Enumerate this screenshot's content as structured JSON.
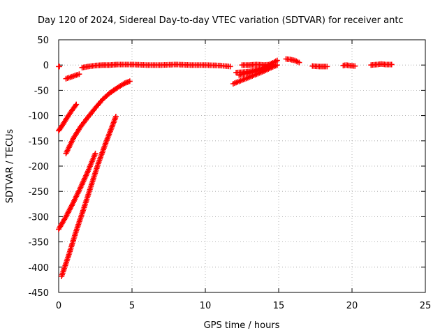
{
  "chart_data": {
    "type": "scatter",
    "title": "Day 120 of 2024, Sidereal Day-to-day VTEC variation (SDTVAR) for receiver antc",
    "xlabel": "GPS time / hours",
    "ylabel": "SDTVAR / TECUs",
    "xlim": [
      0,
      25
    ],
    "ylim": [
      -450,
      50
    ],
    "xticks": [
      0,
      5,
      10,
      15,
      20,
      25
    ],
    "yticks": [
      50,
      0,
      -50,
      -100,
      -150,
      -200,
      -250,
      -300,
      -350,
      -400,
      -450
    ],
    "grid": true,
    "marker": "+",
    "marker_color": "#ff0000",
    "series": [
      {
        "x": [
          0.0,
          0.05
        ],
        "y": [
          -3,
          -3
        ]
      },
      {
        "x": [
          0.0,
          0.3,
          0.6,
          0.9,
          1.2
        ],
        "y": [
          -130,
          -117,
          -103,
          -90,
          -78
        ]
      },
      {
        "x": [
          0.5,
          1.0,
          1.5,
          2.0,
          2.5,
          3.0,
          3.5,
          4.0,
          4.5,
          4.85
        ],
        "y": [
          -175,
          -145,
          -122,
          -103,
          -85,
          -68,
          -55,
          -45,
          -36,
          -32
        ]
      },
      {
        "x": [
          0.0,
          0.5,
          1.0,
          1.5,
          2.0,
          2.5
        ],
        "y": [
          -325,
          -300,
          -272,
          -242,
          -210,
          -175
        ]
      },
      {
        "x": [
          0.2,
          0.7,
          1.2,
          1.7,
          2.2,
          2.7,
          3.2,
          3.6,
          3.9
        ],
        "y": [
          -418,
          -375,
          -328,
          -285,
          -240,
          -195,
          -155,
          -125,
          -102
        ]
      },
      {
        "x": [
          0.5,
          1.0,
          1.4
        ],
        "y": [
          -27,
          -22,
          -18
        ]
      },
      {
        "x": [
          1.6,
          2.0,
          2.5,
          3.0,
          3.5,
          4.0,
          5.0,
          6.0,
          7.0,
          8.0,
          9.0,
          10.0,
          11.0,
          11.7
        ],
        "y": [
          -5,
          -3,
          -1,
          0,
          0,
          1,
          1,
          0,
          0,
          1,
          0,
          0,
          -1,
          -3
        ]
      },
      {
        "x": [
          11.9,
          12.5,
          13.0,
          13.5,
          14.0,
          14.5,
          14.9
        ],
        "y": [
          -37,
          -30,
          -24,
          -18,
          -12,
          -5,
          0
        ]
      },
      {
        "x": [
          12.1,
          12.6,
          13.0,
          13.5,
          14.0,
          14.5,
          14.9
        ],
        "y": [
          -15,
          -14,
          -13,
          -9,
          -5,
          3,
          9
        ]
      },
      {
        "x": [
          12.3,
          12.7,
          13.1,
          13.5,
          13.9,
          14.3,
          14.6
        ],
        "y": [
          -20,
          -17,
          -15,
          -12,
          -8,
          -4,
          1
        ]
      },
      {
        "x": [
          12.5,
          13.0,
          13.5,
          14.0,
          14.5
        ],
        "y": [
          0,
          0,
          1,
          0,
          1
        ]
      },
      {
        "x": [
          15.5,
          15.8,
          16.1,
          16.4
        ],
        "y": [
          12,
          11,
          9,
          5
        ]
      },
      {
        "x": [
          17.3,
          17.8,
          18.3
        ],
        "y": [
          -2,
          -3,
          -3
        ]
      },
      {
        "x": [
          19.4,
          19.6,
          19.8,
          20.2
        ],
        "y": [
          -1,
          0,
          -1,
          -2
        ]
      },
      {
        "x": [
          21.3,
          21.7,
          22.0,
          22.3,
          22.7
        ],
        "y": [
          0,
          1,
          2,
          1,
          1
        ]
      }
    ]
  }
}
